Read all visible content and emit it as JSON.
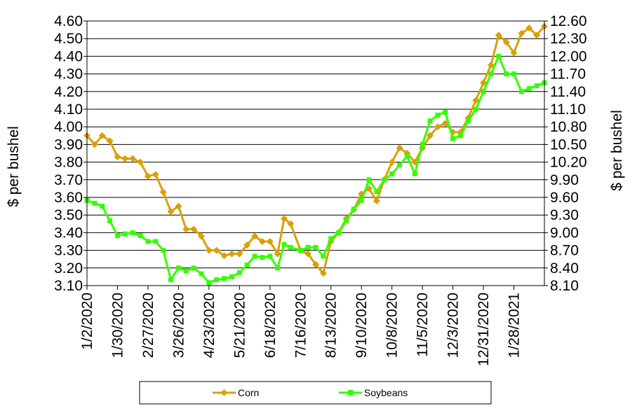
{
  "chart_data": {
    "type": "line",
    "title": "",
    "ylabel": "$ per bushel",
    "y2label": "$ per bushel",
    "ylim": [
      3.1,
      4.6
    ],
    "y2lim": [
      8.1,
      12.6
    ],
    "yticks": [
      "3.10",
      "3.20",
      "3.30",
      "3.40",
      "3.50",
      "3.60",
      "3.70",
      "3.80",
      "3.90",
      "4.00",
      "4.10",
      "4.20",
      "4.30",
      "4.40",
      "4.50",
      "4.60"
    ],
    "y2ticks": [
      "8.10",
      "8.40",
      "8.70",
      "9.00",
      "9.30",
      "9.60",
      "9.90",
      "10.20",
      "10.50",
      "10.80",
      "11.10",
      "11.40",
      "11.70",
      "12.00",
      "12.30",
      "12.60"
    ],
    "xlabels": [
      "1/2/2020",
      "1/30/2020",
      "2/27/2020",
      "3/26/2020",
      "4/23/2020",
      "5/21/2020",
      "6/18/2020",
      "7/16/2020",
      "8/13/2020",
      "9/10/2020",
      "10/8/2020",
      "11/5/2020",
      "12/3/2020",
      "12/31/2020",
      "1/28/2021"
    ],
    "grid": true,
    "legend_position": "bottom",
    "series": [
      {
        "name": "Corn",
        "axis": "left",
        "color": "#D9A007",
        "marker": "diamond",
        "points": [
          [
            "2020-01-02",
            3.95
          ],
          [
            "2020-01-09",
            3.9
          ],
          [
            "2020-01-16",
            3.95
          ],
          [
            "2020-01-23",
            3.92
          ],
          [
            "2020-01-30",
            3.83
          ],
          [
            "2020-02-06",
            3.82
          ],
          [
            "2020-02-13",
            3.82
          ],
          [
            "2020-02-20",
            3.8
          ],
          [
            "2020-02-27",
            3.72
          ],
          [
            "2020-03-05",
            3.73
          ],
          [
            "2020-03-12",
            3.63
          ],
          [
            "2020-03-19",
            3.52
          ],
          [
            "2020-03-26",
            3.55
          ],
          [
            "2020-04-02",
            3.42
          ],
          [
            "2020-04-09",
            3.42
          ],
          [
            "2020-04-16",
            3.38
          ],
          [
            "2020-04-23",
            3.3
          ],
          [
            "2020-04-30",
            3.3
          ],
          [
            "2020-05-07",
            3.27
          ],
          [
            "2020-05-14",
            3.28
          ],
          [
            "2020-05-21",
            3.28
          ],
          [
            "2020-05-28",
            3.33
          ],
          [
            "2020-06-04",
            3.38
          ],
          [
            "2020-06-11",
            3.35
          ],
          [
            "2020-06-18",
            3.35
          ],
          [
            "2020-06-25",
            3.28
          ],
          [
            "2020-07-01",
            3.48
          ],
          [
            "2020-07-07",
            3.45
          ],
          [
            "2020-07-16",
            3.3
          ],
          [
            "2020-07-23",
            3.28
          ],
          [
            "2020-07-30",
            3.22
          ],
          [
            "2020-08-06",
            3.17
          ],
          [
            "2020-08-13",
            3.35
          ],
          [
            "2020-08-20",
            3.4
          ],
          [
            "2020-08-27",
            3.48
          ],
          [
            "2020-09-03",
            3.53
          ],
          [
            "2020-09-10",
            3.62
          ],
          [
            "2020-09-17",
            3.65
          ],
          [
            "2020-09-24",
            3.58
          ],
          [
            "2020-10-01",
            3.7
          ],
          [
            "2020-10-08",
            3.8
          ],
          [
            "2020-10-15",
            3.88
          ],
          [
            "2020-10-22",
            3.85
          ],
          [
            "2020-10-29",
            3.8
          ],
          [
            "2020-11-05",
            3.88
          ],
          [
            "2020-11-12",
            3.95
          ],
          [
            "2020-11-19",
            4.0
          ],
          [
            "2020-11-26",
            4.02
          ],
          [
            "2020-12-03",
            3.97
          ],
          [
            "2020-12-10",
            3.97
          ],
          [
            "2020-12-17",
            4.05
          ],
          [
            "2020-12-24",
            4.15
          ],
          [
            "2020-12-31",
            4.25
          ],
          [
            "2021-01-07",
            4.35
          ],
          [
            "2021-01-14",
            4.52
          ],
          [
            "2021-01-21",
            4.48
          ],
          [
            "2021-01-28",
            4.42
          ],
          [
            "2021-02-04",
            4.53
          ],
          [
            "2021-02-11",
            4.56
          ],
          [
            "2021-02-18",
            4.52
          ],
          [
            "2021-02-25",
            4.57
          ]
        ]
      },
      {
        "name": "Soybeans",
        "axis": "right",
        "color": "#33FF00",
        "marker": "square",
        "points": [
          [
            "2020-01-02",
            9.55
          ],
          [
            "2020-01-09",
            9.5
          ],
          [
            "2020-01-16",
            9.45
          ],
          [
            "2020-01-23",
            9.2
          ],
          [
            "2020-01-30",
            8.95
          ],
          [
            "2020-02-06",
            8.98
          ],
          [
            "2020-02-13",
            9.0
          ],
          [
            "2020-02-20",
            8.95
          ],
          [
            "2020-02-27",
            8.85
          ],
          [
            "2020-03-05",
            8.85
          ],
          [
            "2020-03-12",
            8.7
          ],
          [
            "2020-03-19",
            8.2
          ],
          [
            "2020-03-26",
            8.4
          ],
          [
            "2020-04-02",
            8.35
          ],
          [
            "2020-04-09",
            8.4
          ],
          [
            "2020-04-16",
            8.3
          ],
          [
            "2020-04-23",
            8.15
          ],
          [
            "2020-04-30",
            8.2
          ],
          [
            "2020-05-07",
            8.22
          ],
          [
            "2020-05-14",
            8.25
          ],
          [
            "2020-05-21",
            8.32
          ],
          [
            "2020-05-28",
            8.45
          ],
          [
            "2020-06-04",
            8.6
          ],
          [
            "2020-06-11",
            8.58
          ],
          [
            "2020-06-18",
            8.6
          ],
          [
            "2020-06-25",
            8.4
          ],
          [
            "2020-07-01",
            8.8
          ],
          [
            "2020-07-07",
            8.75
          ],
          [
            "2020-07-16",
            8.7
          ],
          [
            "2020-07-23",
            8.75
          ],
          [
            "2020-07-30",
            8.75
          ],
          [
            "2020-08-06",
            8.6
          ],
          [
            "2020-08-13",
            8.9
          ],
          [
            "2020-08-20",
            9.0
          ],
          [
            "2020-08-27",
            9.2
          ],
          [
            "2020-09-03",
            9.4
          ],
          [
            "2020-09-10",
            9.55
          ],
          [
            "2020-09-17",
            9.9
          ],
          [
            "2020-09-24",
            9.7
          ],
          [
            "2020-10-01",
            9.9
          ],
          [
            "2020-10-08",
            10.0
          ],
          [
            "2020-10-15",
            10.15
          ],
          [
            "2020-10-22",
            10.3
          ],
          [
            "2020-10-29",
            10.0
          ],
          [
            "2020-11-05",
            10.5
          ],
          [
            "2020-11-12",
            10.9
          ],
          [
            "2020-11-19",
            11.0
          ],
          [
            "2020-11-26",
            11.05
          ],
          [
            "2020-12-03",
            10.6
          ],
          [
            "2020-12-10",
            10.65
          ],
          [
            "2020-12-17",
            10.9
          ],
          [
            "2020-12-24",
            11.1
          ],
          [
            "2020-12-31",
            11.4
          ],
          [
            "2021-01-07",
            11.7
          ],
          [
            "2021-01-14",
            12.0
          ],
          [
            "2021-01-21",
            11.7
          ],
          [
            "2021-01-28",
            11.7
          ],
          [
            "2021-02-04",
            11.4
          ],
          [
            "2021-02-11",
            11.45
          ],
          [
            "2021-02-18",
            11.5
          ],
          [
            "2021-02-25",
            11.55
          ]
        ]
      }
    ]
  }
}
